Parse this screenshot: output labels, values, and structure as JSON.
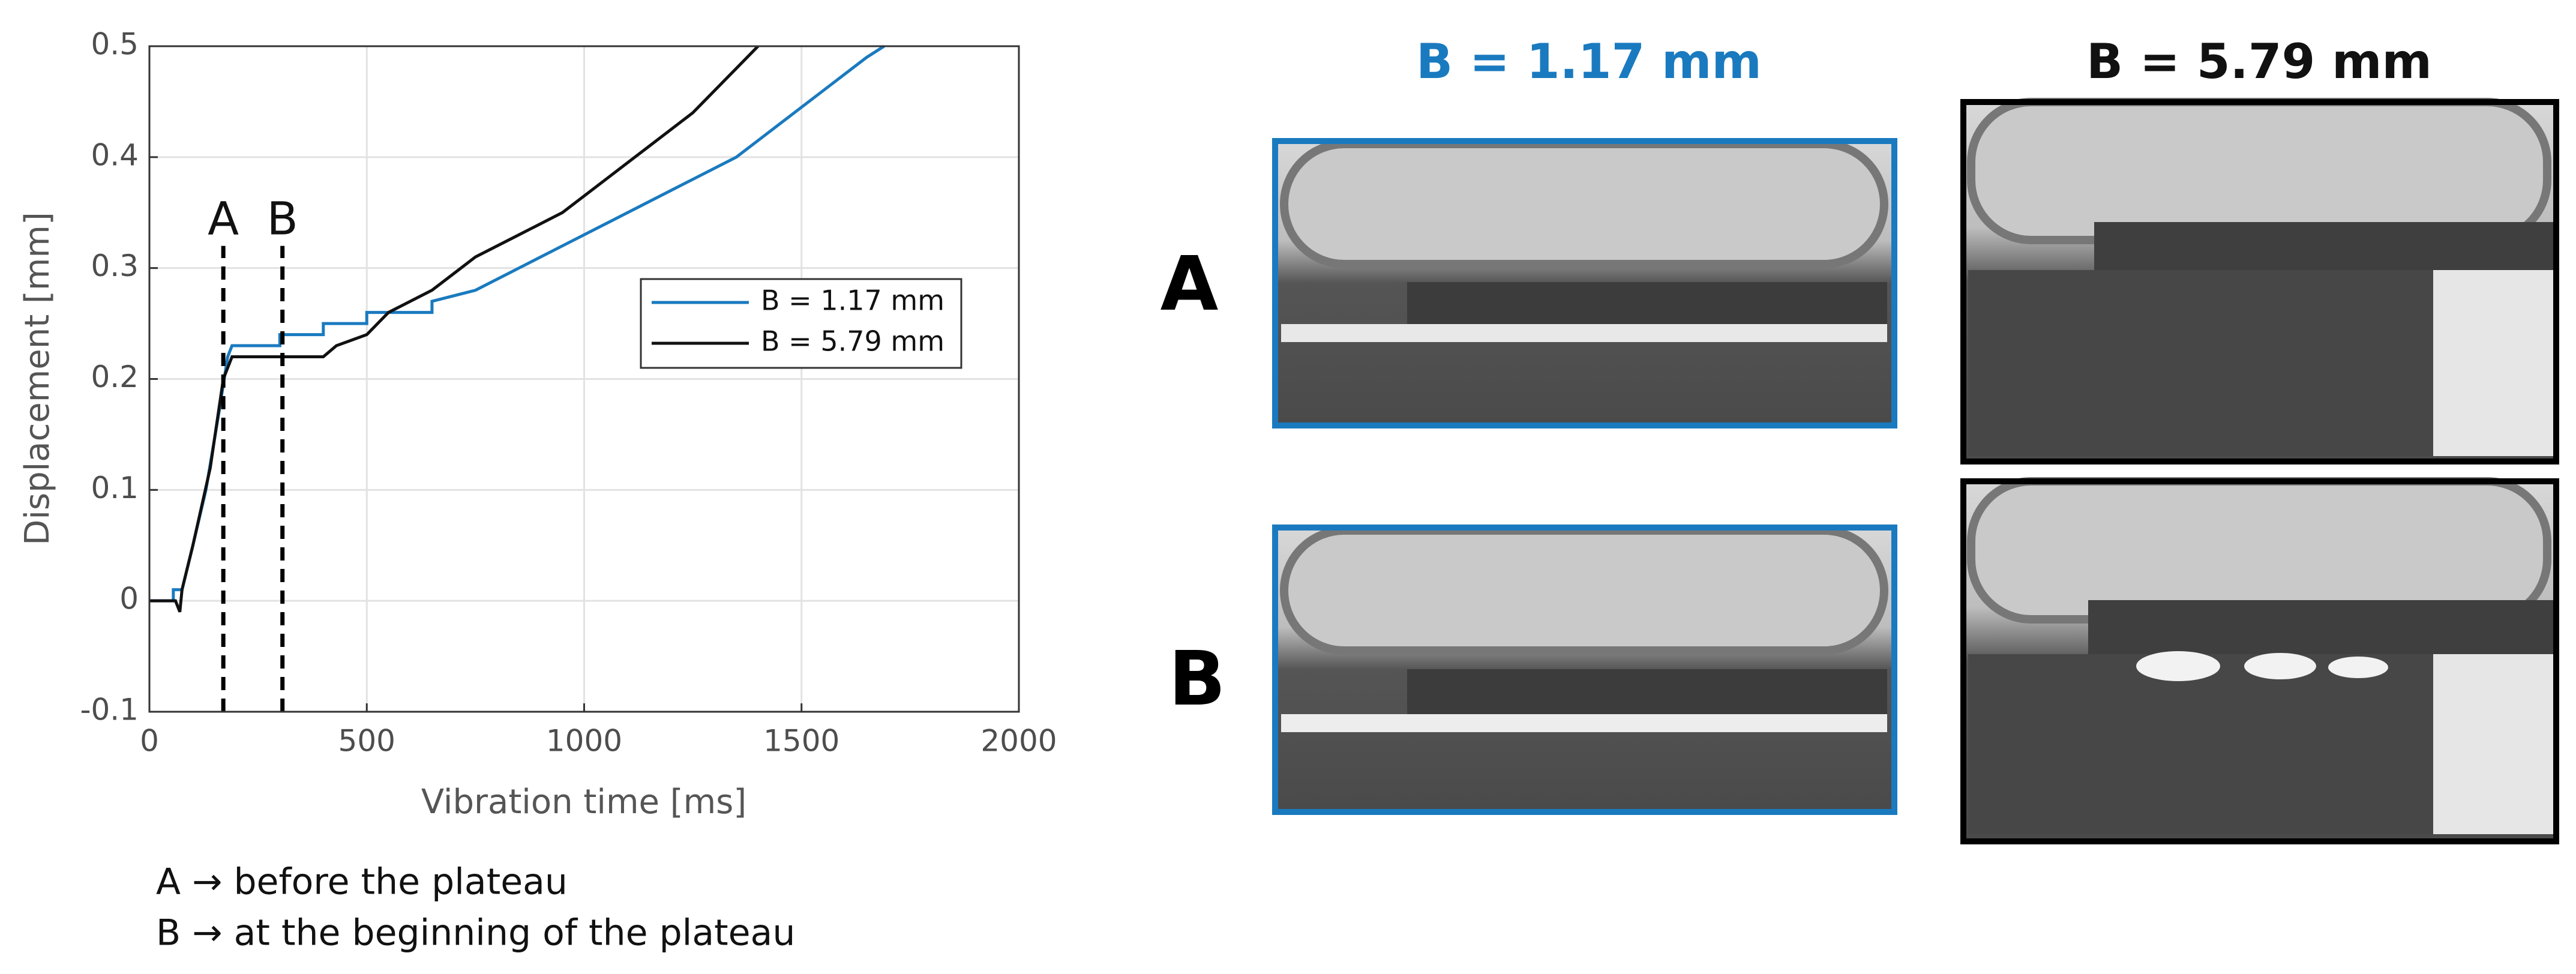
{
  "chart_data": {
    "type": "line",
    "xlabel": "Vibration time [ms]",
    "ylabel": "Displacement [mm]",
    "xlim": [
      0,
      2000
    ],
    "xticks": [
      0,
      500,
      1000,
      1500,
      2000
    ],
    "ylim": [
      -0.1,
      0.5
    ],
    "yticks": [
      -0.1,
      0,
      0.1,
      0.2,
      0.3,
      0.4,
      0.5
    ],
    "grid": true,
    "legend": "right",
    "series": [
      {
        "name": "B = 1.17 mm",
        "color": "#1a7abf",
        "x": [
          0,
          55,
          55,
          75,
          100,
          130,
          160,
          180,
          190,
          300,
          300,
          400,
          400,
          500,
          500,
          650,
          650,
          750,
          850,
          950,
          1050,
          1150,
          1250,
          1350,
          1450,
          1550,
          1650,
          1690
        ],
        "values": [
          0,
          0,
          0.01,
          0.01,
          0.05,
          0.1,
          0.17,
          0.22,
          0.23,
          0.23,
          0.24,
          0.24,
          0.25,
          0.25,
          0.26,
          0.26,
          0.27,
          0.28,
          0.3,
          0.32,
          0.34,
          0.36,
          0.38,
          0.4,
          0.43,
          0.46,
          0.49,
          0.5
        ]
      },
      {
        "name": "B = 5.79 mm",
        "color": "#111111",
        "x": [
          0,
          60,
          70,
          75,
          100,
          140,
          170,
          185,
          190,
          400,
          430,
          500,
          550,
          650,
          750,
          850,
          950,
          1050,
          1150,
          1250,
          1350,
          1400
        ],
        "values": [
          0,
          0,
          -0.01,
          0.01,
          0.05,
          0.12,
          0.2,
          0.215,
          0.22,
          0.22,
          0.23,
          0.24,
          0.26,
          0.28,
          0.31,
          0.33,
          0.35,
          0.38,
          0.41,
          0.44,
          0.48,
          0.5
        ]
      }
    ],
    "markers": [
      {
        "label": "A",
        "x": 170,
        "y": 0.32
      },
      {
        "label": "B",
        "x": 306,
        "y": 0.32
      }
    ]
  },
  "caption": [
    "A → before the plateau",
    "B → at the beginning of the plateau"
  ],
  "photos": {
    "columns": [
      "B = 1.17 mm",
      "B = 5.79 mm"
    ],
    "rows": [
      "A",
      "B"
    ]
  }
}
